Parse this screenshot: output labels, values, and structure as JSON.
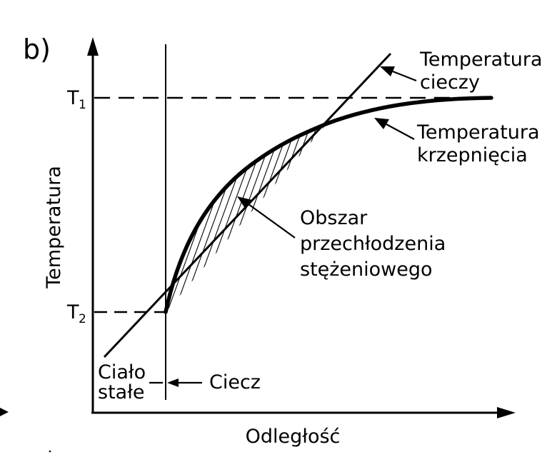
{
  "panel_label": "b)",
  "axes": {
    "y_label": "Temperatura",
    "x_label": "Odległość",
    "ticks": {
      "t1": {
        "main": "T",
        "sub": "1"
      },
      "t2": {
        "main": "T",
        "sub": "2"
      }
    }
  },
  "labels": {
    "liquid_temp": [
      "Temperatura",
      "cieczy"
    ],
    "solidification_temp": [
      "Temperatura",
      "krzepnięcia"
    ],
    "undercooling_region": [
      "Obszar",
      "przechłodzenia",
      "stężeniowego"
    ],
    "solid": [
      "Ciało",
      "stałe"
    ],
    "liquid": "Ciecz"
  },
  "colors": {
    "ink": "#000000",
    "background": "#ffffff"
  }
}
